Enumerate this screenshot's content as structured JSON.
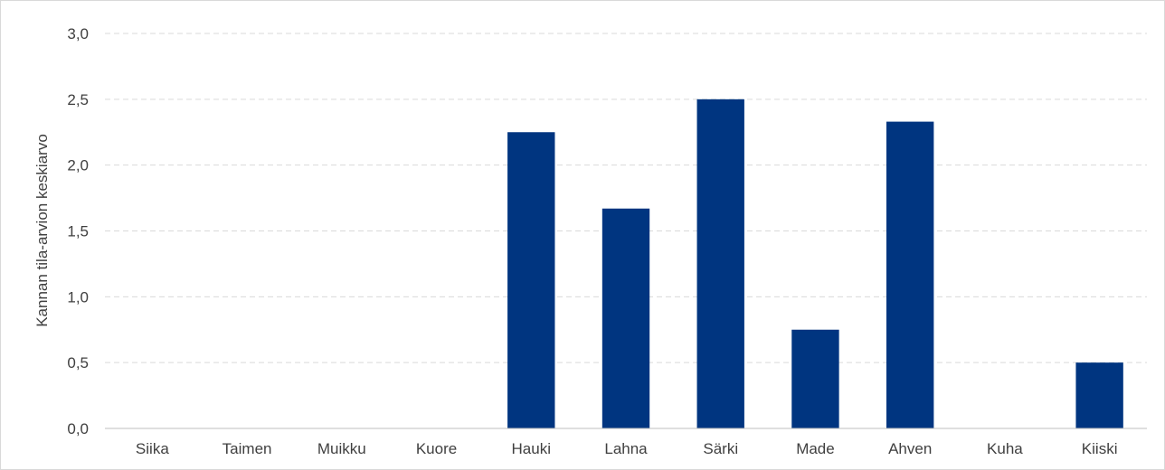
{
  "chart_data": {
    "type": "bar",
    "title": "",
    "xlabel": "",
    "ylabel": "Kannan tila-arvion keskiarvo",
    "categories": [
      "Siika",
      "Taimen",
      "Muikku",
      "Kuore",
      "Hauki",
      "Lahna",
      "Särki",
      "Made",
      "Ahven",
      "Kuha",
      "Kiiski"
    ],
    "values": [
      0,
      0,
      0,
      0,
      2.25,
      1.67,
      2.5,
      0.75,
      2.33,
      0,
      0.5
    ],
    "ylim": [
      0,
      3.0
    ],
    "yticks": [
      "0,0",
      "0,5",
      "1,0",
      "1,5",
      "2,0",
      "2,5",
      "3,0"
    ],
    "ytick_values": [
      0,
      0.5,
      1.0,
      1.5,
      2.0,
      2.5,
      3.0
    ],
    "grid": "horizontal-dashed",
    "legend": "none",
    "bar_color": "#003580",
    "grid_color": "#d9d9d9",
    "axis_color": "#bfbfbf",
    "text_color": "#404040"
  }
}
